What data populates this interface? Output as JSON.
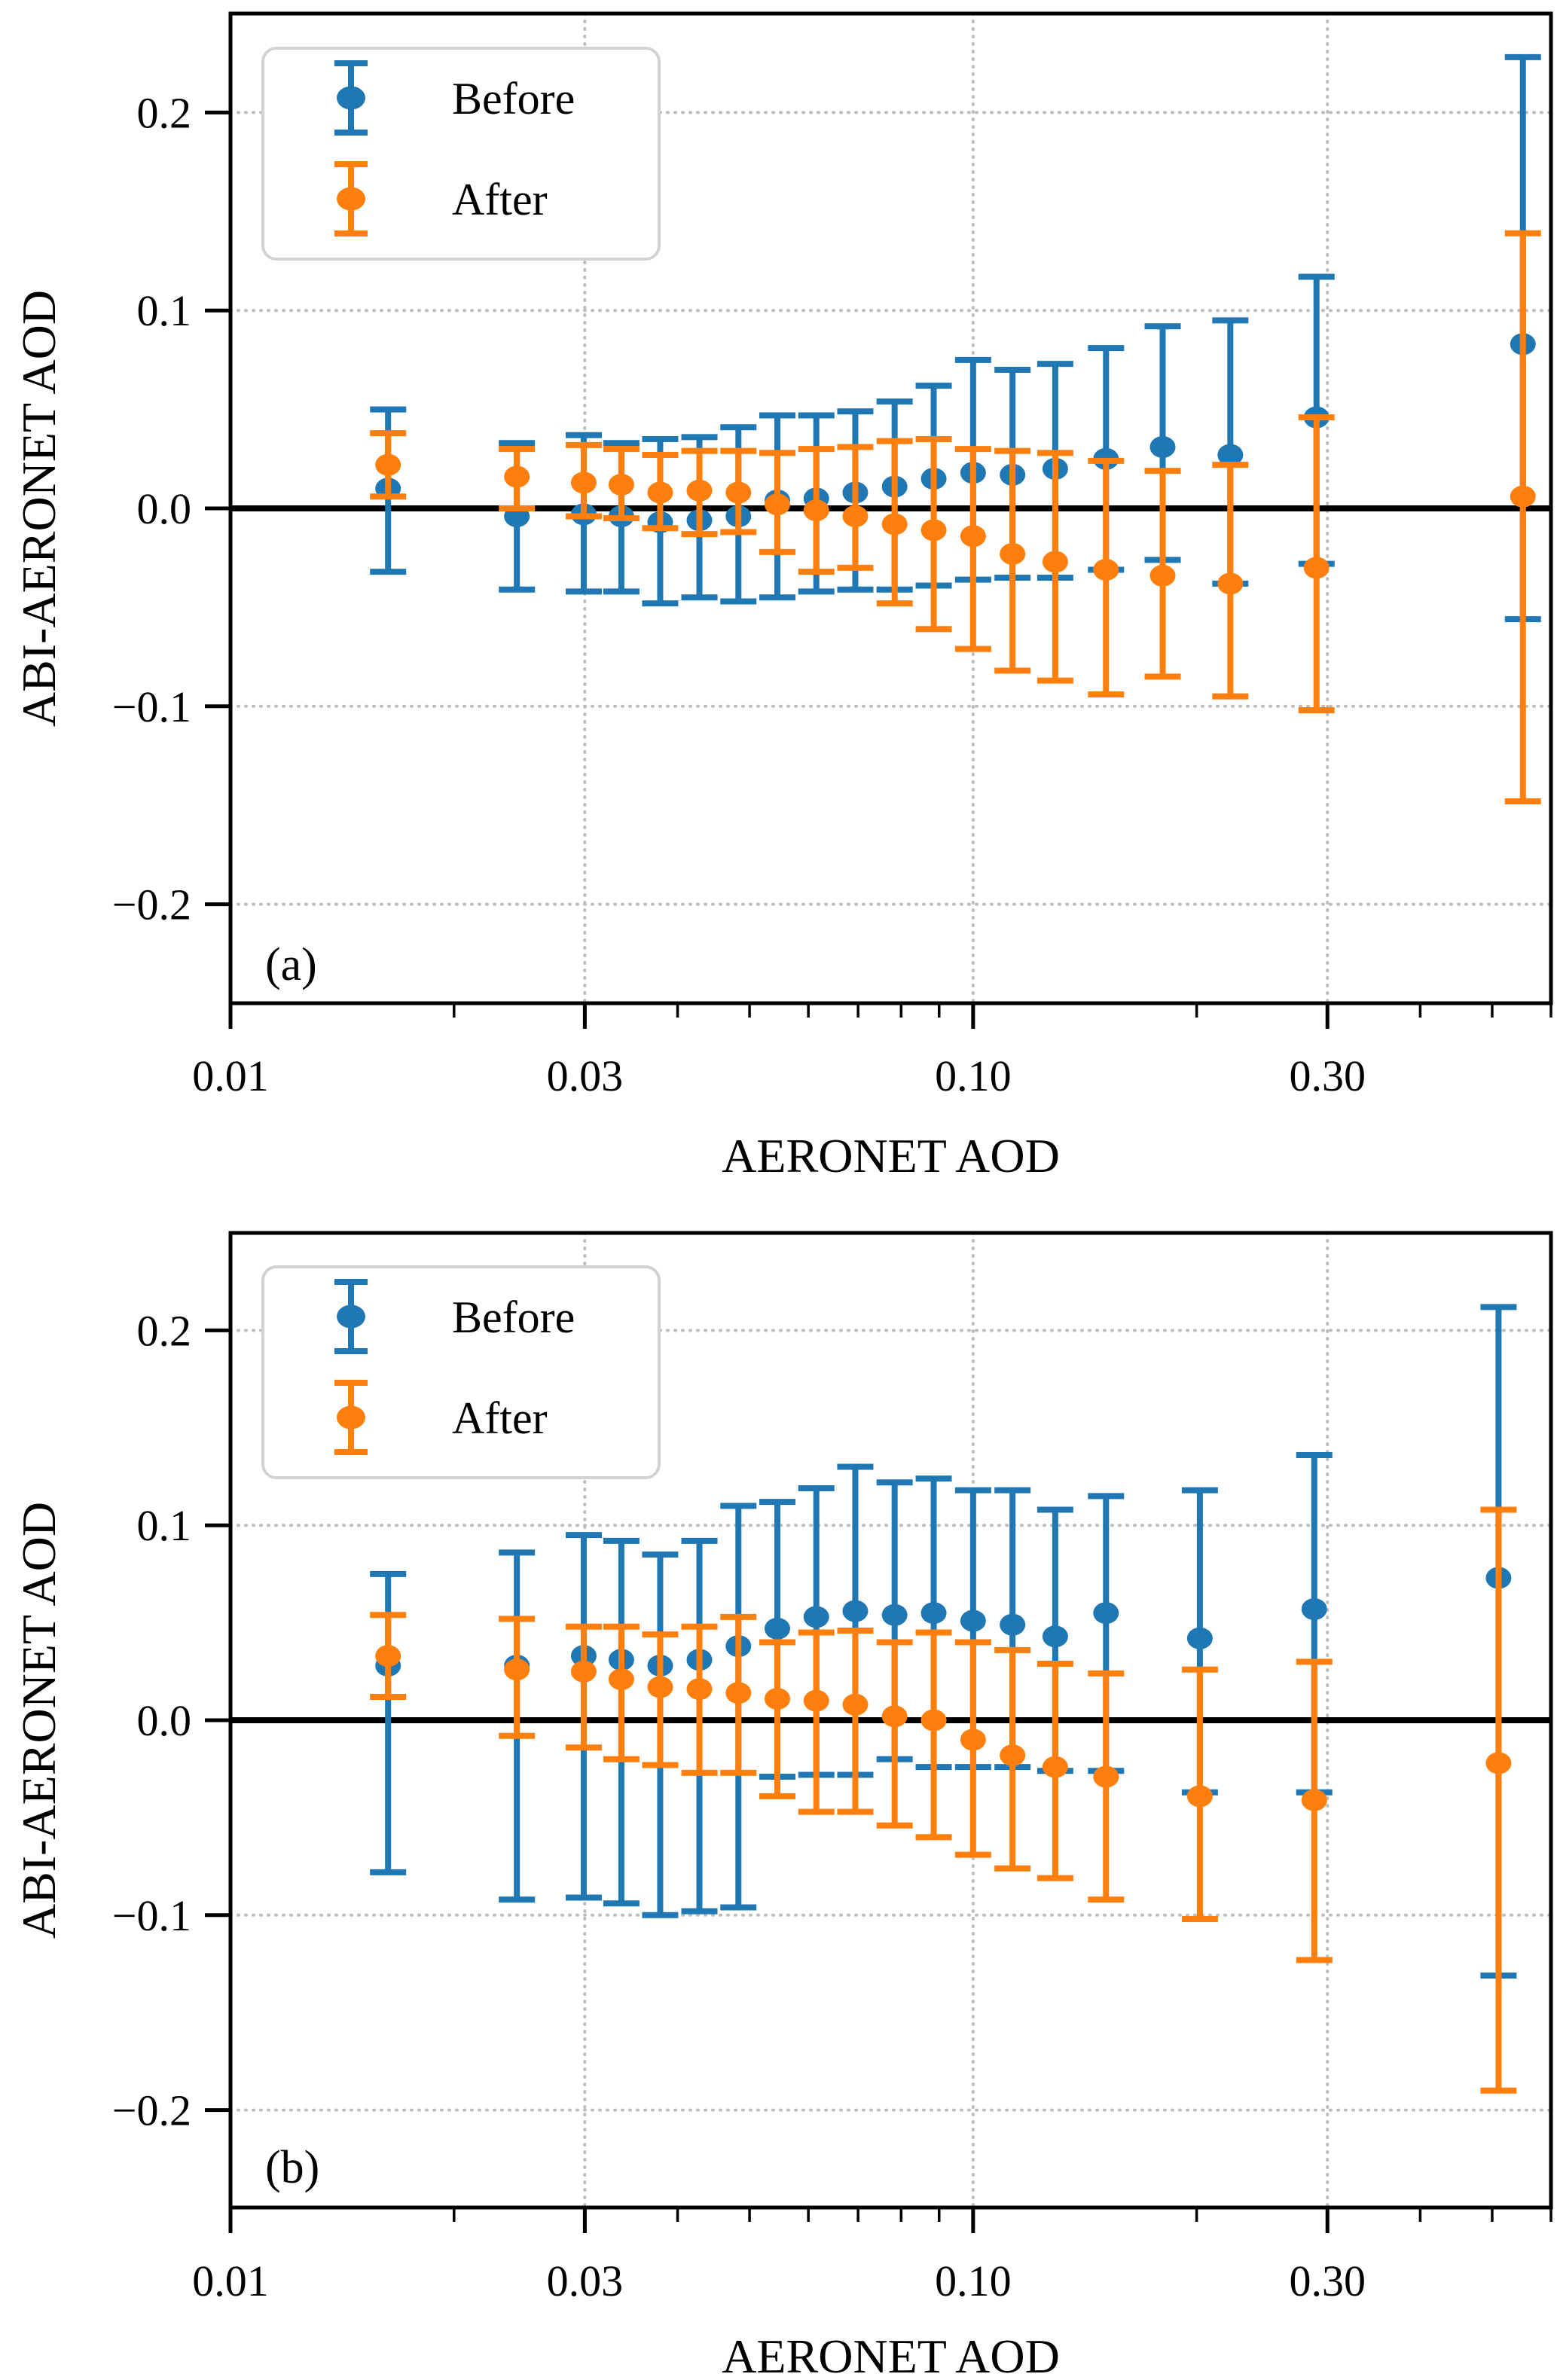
{
  "figure": {
    "background": "#ffffff",
    "text_color": "#000000",
    "grid_color": "#bdbdbd",
    "zero_line_color": "#000000",
    "legend_border_color": "#d2d2d2"
  },
  "chart_data": [
    {
      "type": "scatter",
      "subtype": "errorbar",
      "panel_label": "(a)",
      "xlabel": "AERONET AOD",
      "ylabel": "ABI-AERONET AOD",
      "x_scale": "log",
      "xlim": [
        0.01,
        0.6
      ],
      "ylim": [
        -0.25,
        0.25
      ],
      "x_major_ticks": [
        0.01,
        0.03,
        0.1,
        0.3
      ],
      "x_tick_labels": [
        "0.01",
        "0.03",
        "0.10",
        "0.30"
      ],
      "x_minor_ticks": [
        0.02,
        0.04,
        0.05,
        0.06,
        0.07,
        0.08,
        0.09,
        0.2,
        0.4,
        0.5,
        0.6
      ],
      "x_grid": [
        0.03,
        0.1,
        0.3
      ],
      "y_major_ticks": [
        0.2,
        0.1,
        0.0,
        -0.1,
        -0.2
      ],
      "y_tick_labels": [
        "0.2",
        "0.1",
        "0.0",
        "−0.1",
        "−0.2"
      ],
      "y_grid": [
        0.2,
        0.1,
        -0.1,
        -0.2
      ],
      "grid_style": "dotted",
      "legend_position": "upper left",
      "series": [
        {
          "name": "Before",
          "color": "#1f77b4",
          "x": [
            0.0163,
            0.0243,
            0.0299,
            0.0336,
            0.0379,
            0.0428,
            0.0483,
            0.0545,
            0.0615,
            0.0694,
            0.0784,
            0.0885,
            0.1,
            0.113,
            0.129,
            0.151,
            0.18,
            0.222,
            0.29,
            0.55
          ],
          "y": [
            0.01,
            -0.004,
            -0.003,
            -0.004,
            -0.007,
            -0.006,
            -0.004,
            0.004,
            0.005,
            0.008,
            0.011,
            0.015,
            0.018,
            0.017,
            0.02,
            0.025,
            0.031,
            0.027,
            0.046,
            0.083
          ],
          "err_hi": [
            0.05,
            0.033,
            0.037,
            0.033,
            0.035,
            0.036,
            0.041,
            0.047,
            0.047,
            0.049,
            0.054,
            0.062,
            0.075,
            0.07,
            0.073,
            0.081,
            0.092,
            0.095,
            0.117,
            0.228
          ],
          "err_lo": [
            -0.032,
            -0.041,
            -0.042,
            -0.042,
            -0.048,
            -0.045,
            -0.047,
            -0.045,
            -0.042,
            -0.041,
            -0.041,
            -0.039,
            -0.036,
            -0.035,
            -0.035,
            -0.031,
            -0.026,
            -0.038,
            -0.028,
            -0.056
          ]
        },
        {
          "name": "After",
          "color": "#ff7f0e",
          "x": [
            0.0163,
            0.0243,
            0.0299,
            0.0336,
            0.0379,
            0.0428,
            0.0483,
            0.0545,
            0.0615,
            0.0694,
            0.0784,
            0.0885,
            0.1,
            0.113,
            0.129,
            0.151,
            0.18,
            0.222,
            0.29,
            0.55
          ],
          "y": [
            0.022,
            0.016,
            0.013,
            0.012,
            0.008,
            0.009,
            0.008,
            0.002,
            -0.001,
            -0.004,
            -0.008,
            -0.011,
            -0.014,
            -0.023,
            -0.027,
            -0.031,
            -0.034,
            -0.038,
            -0.03,
            0.006
          ],
          "err_hi": [
            0.038,
            0.03,
            0.032,
            0.03,
            0.027,
            0.029,
            0.029,
            0.028,
            0.03,
            0.031,
            0.034,
            0.035,
            0.03,
            0.029,
            0.028,
            0.024,
            0.019,
            0.022,
            0.046,
            0.139
          ],
          "err_lo": [
            0.006,
            0.0,
            -0.004,
            -0.005,
            -0.01,
            -0.013,
            -0.012,
            -0.022,
            -0.032,
            -0.03,
            -0.048,
            -0.061,
            -0.071,
            -0.082,
            -0.087,
            -0.094,
            -0.085,
            -0.095,
            -0.102,
            -0.148
          ]
        }
      ]
    },
    {
      "type": "scatter",
      "subtype": "errorbar",
      "panel_label": "(b)",
      "xlabel": "AERONET AOD",
      "ylabel": "ABI-AERONET AOD",
      "x_scale": "log",
      "xlim": [
        0.01,
        0.6
      ],
      "ylim": [
        -0.25,
        0.25
      ],
      "x_major_ticks": [
        0.01,
        0.03,
        0.1,
        0.3
      ],
      "x_tick_labels": [
        "0.01",
        "0.03",
        "0.10",
        "0.30"
      ],
      "x_minor_ticks": [
        0.02,
        0.04,
        0.05,
        0.06,
        0.07,
        0.08,
        0.09,
        0.2,
        0.4,
        0.5,
        0.6
      ],
      "x_grid": [
        0.03,
        0.1,
        0.3
      ],
      "y_major_ticks": [
        0.2,
        0.1,
        0.0,
        -0.1,
        -0.2
      ],
      "y_tick_labels": [
        "0.2",
        "0.1",
        "0.0",
        "−0.1",
        "−0.2"
      ],
      "y_grid": [
        0.2,
        0.1,
        -0.1,
        -0.2
      ],
      "grid_style": "dotted",
      "legend_position": "upper left",
      "series": [
        {
          "name": "Before",
          "color": "#1f77b4",
          "x": [
            0.0163,
            0.0243,
            0.0299,
            0.0336,
            0.0379,
            0.0428,
            0.0483,
            0.0545,
            0.0615,
            0.0694,
            0.0784,
            0.0885,
            0.1,
            0.113,
            0.129,
            0.151,
            0.202,
            0.288,
            0.51
          ],
          "y": [
            0.028,
            0.028,
            0.033,
            0.031,
            0.028,
            0.031,
            0.038,
            0.047,
            0.053,
            0.056,
            0.054,
            0.055,
            0.051,
            0.049,
            0.043,
            0.055,
            0.042,
            0.057,
            0.073
          ],
          "err_hi": [
            0.075,
            0.086,
            0.095,
            0.092,
            0.085,
            0.092,
            0.11,
            0.112,
            0.119,
            0.13,
            0.122,
            0.124,
            0.118,
            0.118,
            0.108,
            0.115,
            0.118,
            0.136,
            0.212
          ],
          "err_lo": [
            -0.078,
            -0.092,
            -0.091,
            -0.094,
            -0.1,
            -0.098,
            -0.096,
            -0.029,
            -0.028,
            -0.028,
            -0.02,
            -0.024,
            -0.024,
            -0.024,
            -0.026,
            -0.026,
            -0.037,
            -0.037,
            -0.131
          ]
        },
        {
          "name": "After",
          "color": "#ff7f0e",
          "x": [
            0.0163,
            0.0243,
            0.0299,
            0.0336,
            0.0379,
            0.0428,
            0.0483,
            0.0545,
            0.0615,
            0.0694,
            0.0784,
            0.0885,
            0.1,
            0.113,
            0.129,
            0.151,
            0.202,
            0.288,
            0.51
          ],
          "y": [
            0.033,
            0.026,
            0.025,
            0.021,
            0.017,
            0.016,
            0.014,
            0.011,
            0.01,
            0.008,
            0.002,
            0.0,
            -0.01,
            -0.018,
            -0.024,
            -0.029,
            -0.039,
            -0.041,
            -0.022
          ],
          "err_hi": [
            0.054,
            0.052,
            0.048,
            0.048,
            0.044,
            0.048,
            0.053,
            0.04,
            0.045,
            0.046,
            0.04,
            0.045,
            0.04,
            0.036,
            0.029,
            0.024,
            0.026,
            0.03,
            0.108
          ],
          "err_lo": [
            0.012,
            -0.008,
            -0.014,
            -0.02,
            -0.023,
            -0.027,
            -0.027,
            -0.039,
            -0.047,
            -0.047,
            -0.054,
            -0.06,
            -0.069,
            -0.076,
            -0.081,
            -0.092,
            -0.102,
            -0.123,
            -0.19
          ]
        }
      ]
    }
  ]
}
